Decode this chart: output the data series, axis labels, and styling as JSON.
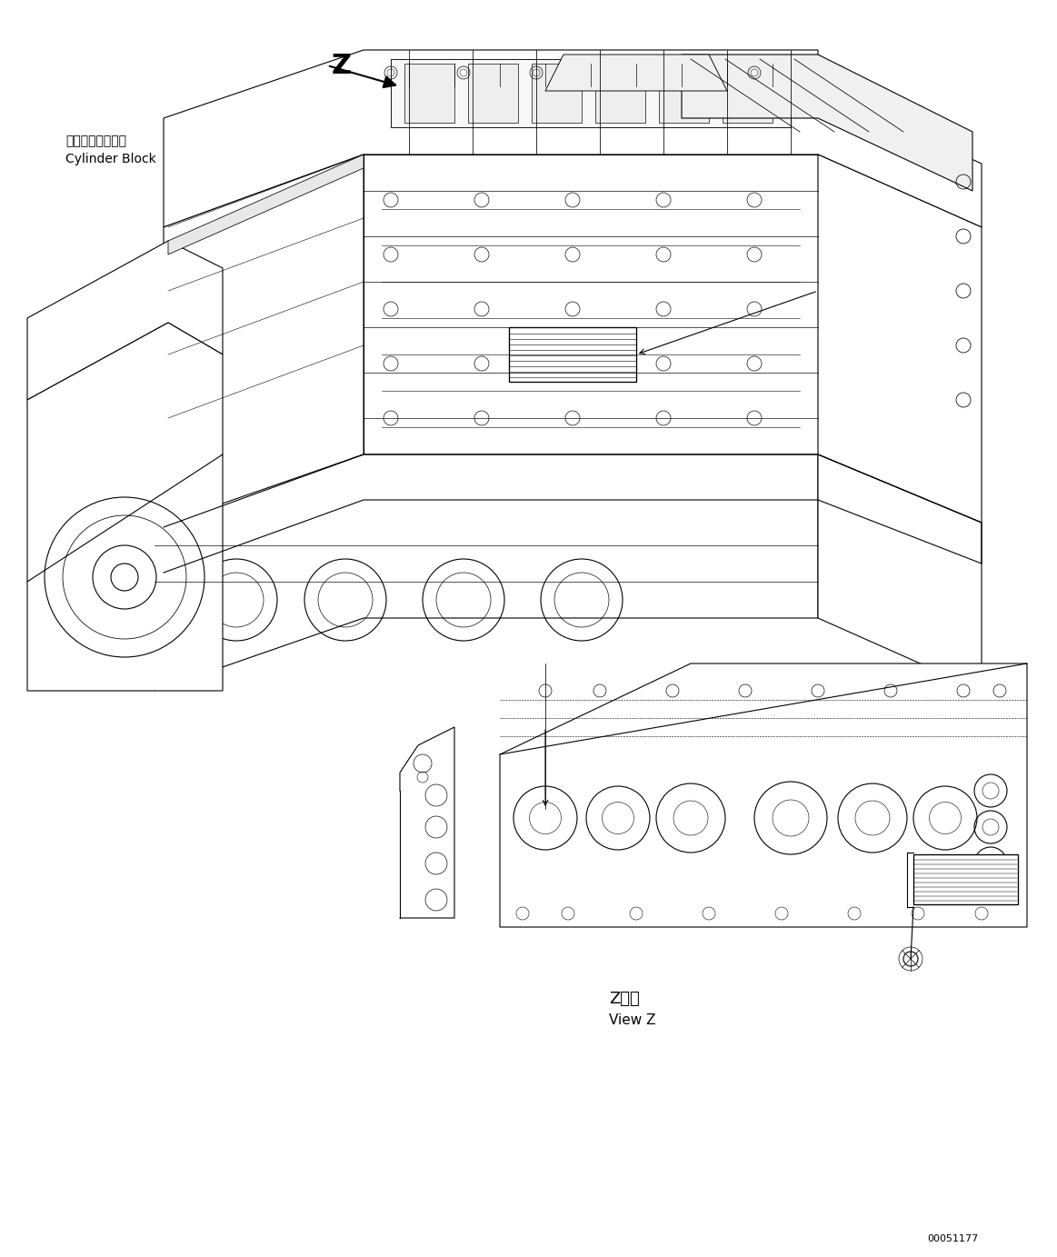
{
  "figsize": [
    11.63,
    13.83
  ],
  "dpi": 100,
  "bg_color": "#ffffff",
  "label_cylinder_jp": "シリンダブロック",
  "label_cylinder_en": "Cylinder Block",
  "label_Z": "Z",
  "label_view_jp": "Z　視",
  "label_view_en": "View Z",
  "doc_number": "00051177",
  "line_color": "#000000",
  "line_width": 0.8,
  "arrow_color": "#000000"
}
